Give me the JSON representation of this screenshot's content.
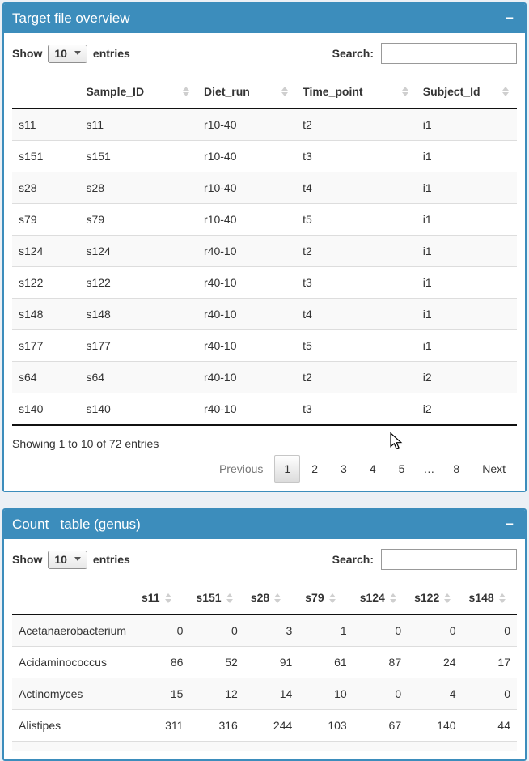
{
  "colors": {
    "accent_blue": "#3c8dbc",
    "page_background": "#ecf0f5",
    "stripe_row": "#f9f9f9",
    "header_rule": "#111111"
  },
  "panels": [
    {
      "title": "Target file overview",
      "collapse_label": "−",
      "controls": {
        "show_label": "Show",
        "length_value": "10",
        "entries_label": "entries",
        "search_label": "Search:",
        "search_value": ""
      },
      "table": {
        "columns": [
          "",
          "Sample_ID",
          "Diet_run",
          "Time_point",
          "Subject_Id"
        ],
        "rows": [
          [
            "s11",
            "s11",
            "r10-40",
            "t2",
            "i1"
          ],
          [
            "s151",
            "s151",
            "r10-40",
            "t3",
            "i1"
          ],
          [
            "s28",
            "s28",
            "r10-40",
            "t4",
            "i1"
          ],
          [
            "s79",
            "s79",
            "r10-40",
            "t5",
            "i1"
          ],
          [
            "s124",
            "s124",
            "r40-10",
            "t2",
            "i1"
          ],
          [
            "s122",
            "s122",
            "r40-10",
            "t3",
            "i1"
          ],
          [
            "s148",
            "s148",
            "r40-10",
            "t4",
            "i1"
          ],
          [
            "s177",
            "s177",
            "r40-10",
            "t5",
            "i1"
          ],
          [
            "s64",
            "s64",
            "r40-10",
            "t2",
            "i2"
          ],
          [
            "s140",
            "s140",
            "r40-10",
            "t3",
            "i2"
          ]
        ]
      },
      "info": "Showing 1 to 10 of 72 entries",
      "pagination": {
        "previous_label": "Previous",
        "pages": [
          "1",
          "2",
          "3",
          "4",
          "5",
          "…",
          "8"
        ],
        "current_page": "1",
        "next_label": "Next"
      }
    },
    {
      "title": "Count   table (genus)",
      "collapse_label": "−",
      "controls": {
        "show_label": "Show",
        "length_value": "10",
        "entries_label": "entries",
        "search_label": "Search:",
        "search_value": ""
      },
      "table": {
        "columns": [
          "",
          "s11",
          "s151",
          "s28",
          "s79",
          "s124",
          "s122",
          "s148"
        ],
        "rows": [
          [
            "Acetanaerobacterium",
            "0",
            "0",
            "3",
            "1",
            "0",
            "0",
            "0"
          ],
          [
            "Acidaminococcus",
            "86",
            "52",
            "91",
            "61",
            "87",
            "24",
            "17"
          ],
          [
            "Actinomyces",
            "15",
            "12",
            "14",
            "10",
            "0",
            "4",
            "0"
          ],
          [
            "Alistipes",
            "311",
            "316",
            "244",
            "103",
            "67",
            "140",
            "44"
          ]
        ]
      }
    }
  ]
}
